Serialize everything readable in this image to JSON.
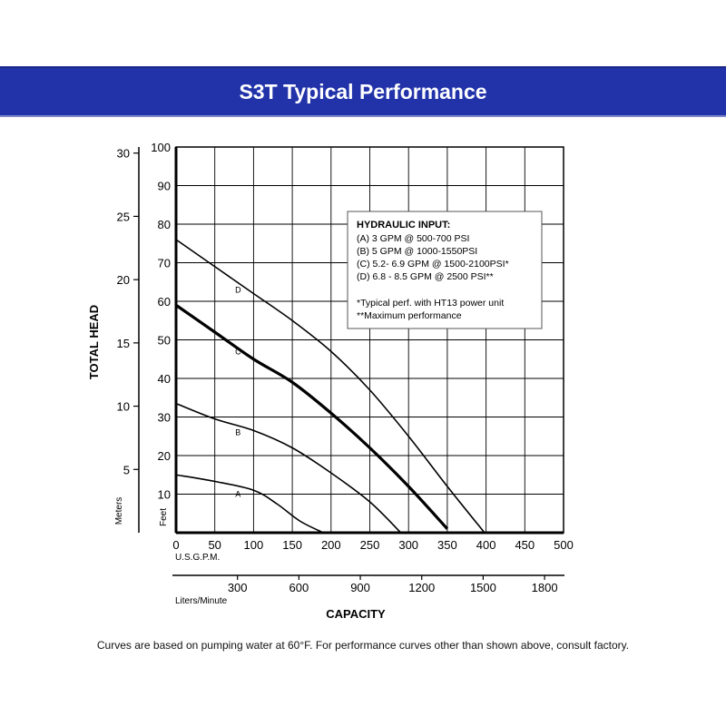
{
  "header": {
    "title": "S3T Typical Performance"
  },
  "footnote": "Curves are based on pumping water at 60°F. For performance curves other than shown above, consult factory.",
  "colors": {
    "banner": "#2233aa",
    "banner_text": "#ffffff",
    "grid": "#000000"
  },
  "chart_data": {
    "type": "line",
    "title": "",
    "xlabel": "CAPACITY",
    "ylabel": "TOTAL HEAD",
    "x_unit_label": "U.S.G.P.M.",
    "x_secondary_unit_label": "Liters/Minute",
    "y_unit_label": "Feet",
    "y_secondary_unit_label": "Meters",
    "xlim": [
      0,
      500
    ],
    "ylim": [
      0,
      100
    ],
    "grid": true,
    "x_ticks": [
      0,
      50,
      100,
      150,
      200,
      250,
      300,
      350,
      400,
      450,
      500
    ],
    "y_ticks": [
      10,
      20,
      30,
      40,
      50,
      60,
      70,
      80,
      90,
      100
    ],
    "x_secondary_ticks": [
      300,
      600,
      900,
      1200,
      1500,
      1800
    ],
    "y_secondary_ticks": [
      5,
      10,
      15,
      20,
      25,
      30
    ],
    "legend": {
      "title": "HYDRAULIC INPUT:",
      "placement": "top-right",
      "entries": [
        "(A) 3 GPM @ 500-700 PSI",
        "(B) 5 GPM @ 1000-1550PSI",
        "(C) 5.2- 6.9 GPM @ 1500-2100PSI*",
        "(D) 6.8 - 8.5 GPM @ 2500 PSI**"
      ],
      "notes": [
        "*Typical perf. with HT13 power unit",
        "**Maximum performance"
      ]
    },
    "series": [
      {
        "name": "A",
        "label_at": [
          80,
          10
        ],
        "bold": false,
        "points": [
          [
            0,
            15
          ],
          [
            50,
            13.3
          ],
          [
            100,
            11
          ],
          [
            130,
            7.5
          ],
          [
            160,
            3
          ],
          [
            190,
            0
          ]
        ]
      },
      {
        "name": "B",
        "label_at": [
          80,
          26
        ],
        "bold": false,
        "points": [
          [
            0,
            33.5
          ],
          [
            50,
            29.5
          ],
          [
            100,
            26.5
          ],
          [
            150,
            22
          ],
          [
            200,
            15.5
          ],
          [
            250,
            8
          ],
          [
            290,
            0
          ]
        ]
      },
      {
        "name": "C",
        "label_at": [
          80,
          47
        ],
        "bold": true,
        "points": [
          [
            0,
            59
          ],
          [
            50,
            52
          ],
          [
            100,
            45
          ],
          [
            150,
            39
          ],
          [
            200,
            31
          ],
          [
            250,
            22
          ],
          [
            300,
            12
          ],
          [
            350,
            1
          ]
        ]
      },
      {
        "name": "D",
        "label_at": [
          80,
          63
        ],
        "bold": false,
        "points": [
          [
            0,
            76
          ],
          [
            50,
            69
          ],
          [
            100,
            62
          ],
          [
            150,
            55
          ],
          [
            200,
            47
          ],
          [
            250,
            37
          ],
          [
            300,
            25
          ],
          [
            350,
            12
          ],
          [
            398,
            0
          ]
        ]
      }
    ]
  }
}
